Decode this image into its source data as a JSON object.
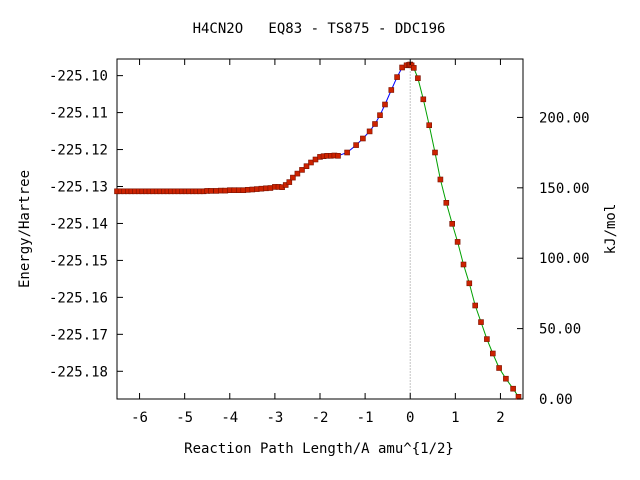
{
  "chart_data": {
    "type": "line",
    "title": "H4CN2O   EQ83 - TS875 - DDC196",
    "xlabel": "Reaction Path Length/A amu^{1/2}",
    "ylabel": "Energy/Hartree",
    "y2label": "kJ/mol",
    "xlim": [
      -6.5,
      2.5
    ],
    "ylim": [
      -225.1875,
      -225.0955
    ],
    "y2lim": [
      0,
      241.5
    ],
    "x_ticks": [
      {
        "value": -6,
        "label": "-6"
      },
      {
        "value": -5,
        "label": "-5"
      },
      {
        "value": -4,
        "label": "-4"
      },
      {
        "value": -3,
        "label": "-3"
      },
      {
        "value": -2,
        "label": "-2"
      },
      {
        "value": -1,
        "label": "-1"
      },
      {
        "value": 0,
        "label": "0"
      },
      {
        "value": 1,
        "label": "1"
      },
      {
        "value": 2,
        "label": "2"
      }
    ],
    "y_ticks": [
      {
        "value": -225.1,
        "label": "-225.10"
      },
      {
        "value": -225.11,
        "label": "-225.11"
      },
      {
        "value": -225.12,
        "label": "-225.12"
      },
      {
        "value": -225.13,
        "label": "-225.13"
      },
      {
        "value": -225.14,
        "label": "-225.14"
      },
      {
        "value": -225.15,
        "label": "-225.15"
      },
      {
        "value": -225.16,
        "label": "-225.16"
      },
      {
        "value": -225.17,
        "label": "-225.17"
      },
      {
        "value": -225.18,
        "label": "-225.18"
      }
    ],
    "y2_ticks": [
      {
        "value": 0,
        "label": "0.00"
      },
      {
        "value": 50,
        "label": "50.00"
      },
      {
        "value": 100,
        "label": "100.00"
      },
      {
        "value": 150,
        "label": "150.00"
      },
      {
        "value": 200,
        "label": "200.00"
      }
    ],
    "ts_marker_x": 0,
    "colors": {
      "left_branch": "#0000ff",
      "right_branch": "#00a000",
      "points": "#cc2200",
      "point_edge": "#7a1200",
      "ts_line": "#888888"
    },
    "series": [
      {
        "branch": "left",
        "x": [
          -6.5,
          -6.42,
          -6.34,
          -6.26,
          -6.18,
          -6.1,
          -6.02,
          -5.94,
          -5.86,
          -5.78,
          -5.7,
          -5.62,
          -5.54,
          -5.46,
          -5.38,
          -5.3,
          -5.22,
          -5.14,
          -5.06,
          -4.98,
          -4.9,
          -4.82,
          -4.74,
          -4.66,
          -4.58,
          -4.5,
          -4.42,
          -4.3,
          -4.2,
          -4.1,
          -4.0,
          -3.9,
          -3.8,
          -3.7,
          -3.6,
          -3.5,
          -3.4,
          -3.3,
          -3.2,
          -3.1,
          -3.0,
          -2.92,
          -2.84,
          -2.76,
          -2.68,
          -2.6,
          -2.5,
          -2.4,
          -2.3,
          -2.2,
          -2.1,
          -2.0,
          -1.92,
          -1.84,
          -1.76,
          -1.68,
          -1.6,
          -1.4,
          -1.2,
          -1.05,
          -0.9,
          -0.78,
          -0.67,
          -0.56,
          -0.42,
          -0.29,
          -0.18,
          -0.08,
          -0.03,
          0.0
        ],
        "y": [
          -225.1313,
          -225.1313,
          -225.1313,
          -225.1313,
          -225.1313,
          -225.1313,
          -225.1313,
          -225.1313,
          -225.1313,
          -225.1313,
          -225.1313,
          -225.1313,
          -225.1313,
          -225.1313,
          -225.1313,
          -225.1313,
          -225.1313,
          -225.1313,
          -225.1313,
          -225.1313,
          -225.1313,
          -225.1313,
          -225.1313,
          -225.1313,
          -225.1313,
          -225.1312,
          -225.1312,
          -225.1312,
          -225.1311,
          -225.1311,
          -225.131,
          -225.131,
          -225.131,
          -225.131,
          -225.1309,
          -225.1308,
          -225.1307,
          -225.1306,
          -225.1305,
          -225.1304,
          -225.1301,
          -225.1301,
          -225.1302,
          -225.1296,
          -225.1288,
          -225.1276,
          -225.1265,
          -225.1255,
          -225.1245,
          -225.1235,
          -225.1227,
          -225.122,
          -225.1218,
          -225.1217,
          -225.1217,
          -225.1216,
          -225.1217,
          -225.1208,
          -225.1188,
          -225.117,
          -225.1151,
          -225.1131,
          -225.1107,
          -225.1078,
          -225.1039,
          -225.1004,
          -225.0978,
          -225.0972,
          -225.0971,
          -225.097
        ]
      },
      {
        "branch": "right",
        "x": [
          0.0,
          0.03,
          0.08,
          0.17,
          0.29,
          0.42,
          0.55,
          0.67,
          0.8,
          0.93,
          1.05,
          1.18,
          1.31,
          1.44,
          1.57,
          1.7,
          1.83,
          1.97,
          2.12,
          2.28,
          2.4
        ],
        "y": [
          -225.097,
          -225.0972,
          -225.0979,
          -225.1007,
          -225.1064,
          -225.1134,
          -225.1208,
          -225.1281,
          -225.1344,
          -225.1401,
          -225.145,
          -225.1511,
          -225.1562,
          -225.1622,
          -225.1667,
          -225.1713,
          -225.1752,
          -225.1791,
          -225.182,
          -225.1847,
          -225.1869
        ]
      }
    ]
  }
}
